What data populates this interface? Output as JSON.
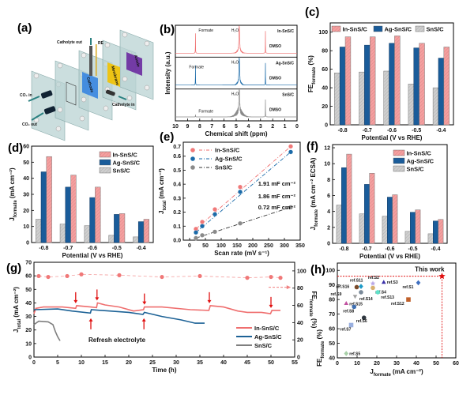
{
  "colors": {
    "in": "#f4a0a0",
    "in_line": "#ef6f6f",
    "ag": "#1a5c9a",
    "sns": "#c4c4c4",
    "sns_line": "#7f7f7f",
    "red": "#e01010"
  },
  "series_names": [
    "In-SnS/C",
    "Ag-SnS/C",
    "SnS/C"
  ],
  "chart_data": [
    {
      "panel": "(a)",
      "type": "diagram",
      "labels": {
        "catholyte_out": "Catholyte out",
        "re": "RE",
        "cathode": "Cathode",
        "membrane": "Membrane",
        "anode": "Anode",
        "co2_in": "CO₂ in",
        "co2_out": "CO₂ out",
        "catholyte_in": "Catholyte in"
      }
    },
    {
      "panel": "(b)",
      "type": "line",
      "xlabel": "Chemical shift (ppm)",
      "ylabel": "Intensity (a.u.)",
      "xlim": [
        10,
        0
      ],
      "xticks": [
        "10",
        "9",
        "8",
        "7",
        "6",
        "5",
        "4",
        "3",
        "2",
        "1",
        "0"
      ],
      "spectra": [
        {
          "name": "In-SnS/C",
          "color": "#ef6f6f",
          "peaks": [
            {
              "label": "Formate",
              "ppm": 8.35
            },
            {
              "label": "H₂O",
              "ppm": 4.75
            },
            {
              "label": "DMSO",
              "ppm": 2.6
            }
          ]
        },
        {
          "name": "Ag-SnS/C",
          "color": "#1a6aa8",
          "peaks": [
            {
              "label": "Formate",
              "ppm": 8.35
            },
            {
              "label": "H₂O",
              "ppm": 4.75
            },
            {
              "label": "DMSO",
              "ppm": 2.6
            }
          ]
        },
        {
          "name": "SnS/C",
          "color": "#8a8a8a",
          "peaks": [
            {
              "label": "Formate",
              "ppm": 8.35
            },
            {
              "label": "H₂O",
              "ppm": 4.75
            },
            {
              "label": "DMSO",
              "ppm": 2.6
            }
          ]
        }
      ]
    },
    {
      "panel": "(c)",
      "type": "bar",
      "categories": [
        "-0.8",
        "-0.7",
        "-0.6",
        "-0.5",
        "-0.4"
      ],
      "series": [
        {
          "name": "SnS/C",
          "values": [
            56,
            57,
            58,
            44,
            40
          ]
        },
        {
          "name": "Ag-SnS/C",
          "values": [
            84,
            86,
            88,
            83,
            72
          ]
        },
        {
          "name": "In-SnS/C",
          "values": [
            95,
            95,
            96,
            88,
            84
          ]
        }
      ],
      "xlabel": "Potential (V vs RHE)",
      "ylabel": {
        "main": "FE",
        "sub": "formate",
        "rest": " (%)"
      },
      "ylim": [
        0,
        110
      ],
      "yticks": [
        "0",
        "20",
        "40",
        "60",
        "80",
        "100"
      ],
      "legend": "top"
    },
    {
      "panel": "(d)",
      "type": "bar",
      "categories": [
        "-0.8",
        "-0.7",
        "-0.6",
        "-0.5",
        "-0.4"
      ],
      "series": [
        {
          "name": "SnS/C",
          "values": [
            14.5,
            11.5,
            10.5,
            4.5,
            3.5
          ]
        },
        {
          "name": "Ag-SnS/C",
          "values": [
            44,
            34.5,
            28,
            17.5,
            13
          ]
        },
        {
          "name": "In-SnS/C",
          "values": [
            53.5,
            42,
            34.5,
            18,
            14.5
          ]
        }
      ],
      "xlabel": "Potential (V vs RHE)",
      "ylabel": {
        "main": "J",
        "sub": "formate",
        "rest": " (mA cm⁻²)"
      },
      "ylim": [
        0,
        60
      ],
      "yticks": [
        "0",
        "10",
        "20",
        "30",
        "40",
        "50",
        "60"
      ],
      "legend": "top-right"
    },
    {
      "panel": "(e)",
      "type": "scatter",
      "x": [
        20,
        40,
        80,
        160,
        320
      ],
      "series": [
        {
          "name": "In-SnS/C",
          "values": [
            0.08,
            0.13,
            0.22,
            0.38,
            0.67
          ],
          "slope_label": "1.91 mF cm⁻²"
        },
        {
          "name": "Ag-SnS/C",
          "values": [
            0.055,
            0.1,
            0.185,
            0.345,
            0.63
          ],
          "slope_label": "1.86 mF cm⁻²"
        },
        {
          "name": "SnS/C",
          "values": [
            0.015,
            0.035,
            0.06,
            0.12,
            0.235
          ],
          "slope_label": "0.72 mF cm⁻²"
        }
      ],
      "xlabel": "Scan rate (mV s⁻¹)",
      "ylabel": {
        "main": "J",
        "sub": "total",
        "rest": " (mA cm⁻²)"
      },
      "xlim": [
        -20,
        350
      ],
      "ylim": [
        0,
        0.7
      ],
      "xticks": [
        "0",
        "50",
        "100",
        "150",
        "200",
        "250",
        "300",
        "350"
      ],
      "yticks": [
        "0.0",
        "0.1",
        "0.2",
        "0.3",
        "0.4",
        "0.5",
        "0.6",
        "0.7"
      ],
      "legend": "top-left"
    },
    {
      "panel": "(f)",
      "type": "bar",
      "categories": [
        "-0.8",
        "-0.7",
        "-0.6",
        "-0.5",
        "-0.4"
      ],
      "series": [
        {
          "name": "SnS/C",
          "values": [
            4.8,
            3.7,
            3.4,
            1.5,
            1.2
          ]
        },
        {
          "name": "Ag-SnS/C",
          "values": [
            9.5,
            7.4,
            5.8,
            3.9,
            2.8
          ]
        },
        {
          "name": "In-SnS/C",
          "values": [
            11.2,
            8.8,
            6.1,
            4.2,
            3.0
          ]
        }
      ],
      "xlabel": "Potential (V vs RHE)",
      "ylabel": {
        "main": "J",
        "sub": "formate",
        "rest": " (mA cm⁻² ECSA)"
      },
      "ylim": [
        0,
        12.4
      ],
      "yticks": [
        "0",
        "2",
        "4",
        "6",
        "8",
        "10",
        "12"
      ],
      "legend": "top-right"
    },
    {
      "panel": "(g)",
      "type": "line",
      "xlabel": "Time (h)",
      "ylabel": {
        "main": "J",
        "sub": "total",
        "rest": " (mA cm⁻²)"
      },
      "y2label": {
        "main": "FE",
        "sub": "formate",
        "rest": " (%)"
      },
      "xlim": [
        0,
        55
      ],
      "ylim": [
        0,
        70
      ],
      "y2lim": [
        0,
        110
      ],
      "xticks": [
        "0",
        "5",
        "10",
        "15",
        "20",
        "25",
        "30",
        "35",
        "40",
        "45",
        "50",
        "55"
      ],
      "yticks": [
        "0",
        "10",
        "20",
        "30",
        "40",
        "50",
        "60",
        "70"
      ],
      "y2ticks": [
        "0",
        "20",
        "40",
        "60",
        "80",
        "100"
      ],
      "annotation": "Refresh electrolyte",
      "refresh_down_times": [
        8.8,
        13.3,
        23.3,
        37,
        50
      ],
      "refresh_up_times": [
        12,
        23.2
      ],
      "series": [
        {
          "name": "In-SnS/C",
          "points": [
            [
              0,
              32
            ],
            [
              0.4,
              36
            ],
            [
              2,
              37
            ],
            [
              6,
              37
            ],
            [
              8.8,
              36
            ],
            [
              9,
              38
            ],
            [
              12,
              37
            ],
            [
              13.2,
              36.5
            ],
            [
              13.4,
              40
            ],
            [
              15,
              38.5
            ],
            [
              18,
              37
            ],
            [
              21,
              34
            ],
            [
              23.1,
              35
            ],
            [
              23.3,
              37
            ],
            [
              27,
              37
            ],
            [
              33,
              35
            ],
            [
              36.9,
              34.5
            ],
            [
              37.2,
              38
            ],
            [
              40,
              37
            ],
            [
              43,
              34
            ],
            [
              45,
              33
            ],
            [
              48,
              33
            ],
            [
              49.9,
              32
            ],
            [
              50.2,
              34.5
            ],
            [
              52,
              34.5
            ]
          ]
        },
        {
          "name": "Ag-SnS/C",
          "points": [
            [
              0,
              35
            ],
            [
              5,
              35.5
            ],
            [
              8,
              34
            ],
            [
              11.9,
              32.5
            ],
            [
              12.1,
              35
            ],
            [
              16,
              34
            ],
            [
              20,
              33
            ],
            [
              23,
              31.5
            ],
            [
              23.3,
              33
            ],
            [
              27,
              30
            ],
            [
              31,
              27.5
            ],
            [
              34,
              25
            ],
            [
              36,
              25
            ]
          ]
        },
        {
          "name": "SnS/C",
          "points": [
            [
              0,
              24
            ],
            [
              1,
              26.5
            ],
            [
              3,
              26
            ],
            [
              4,
              24
            ],
            [
              4.5,
              19
            ],
            [
              5,
              15
            ],
            [
              5.5,
              12
            ]
          ]
        }
      ],
      "fe_points": [
        [
          1,
          94
        ],
        [
          3,
          93
        ],
        [
          7,
          94
        ],
        [
          10,
          96
        ],
        [
          18,
          95
        ],
        [
          27,
          93
        ],
        [
          35,
          94
        ],
        [
          45,
          92
        ],
        [
          50,
          93
        ],
        [
          52,
          92
        ]
      ],
      "legend": "bottom-right"
    },
    {
      "panel": "(h)",
      "type": "scatter",
      "xlabel": {
        "main": "J",
        "sub": "formate",
        "rest": " (mA cm⁻²)"
      },
      "ylabel": {
        "main": "FE",
        "sub": "formate",
        "rest": " (%)"
      },
      "xlim": [
        0,
        60
      ],
      "ylim": [
        40,
        105
      ],
      "xticks": [
        "0",
        "10",
        "20",
        "30",
        "40",
        "50",
        "60"
      ],
      "yticks": [
        "40",
        "50",
        "60",
        "70",
        "80",
        "90",
        "100"
      ],
      "this_work": {
        "label": "This work",
        "x": 53,
        "y": 96,
        "color": "#e01010"
      },
      "points": [
        {
          "label": "ref.S11",
          "x": 12,
          "y": 89,
          "color": "#1d9ac8",
          "marker": "diamond"
        },
        {
          "label": "ref.S16",
          "x": 9.8,
          "y": 88.5,
          "color": "#7a4a2a",
          "marker": "circle"
        },
        {
          "label": "ref.S9",
          "x": 9,
          "y": 82,
          "color": "#a0a0a0",
          "marker": "triangle-down"
        },
        {
          "label": "ref.S2",
          "x": 18,
          "y": 91,
          "color": "#b9a6e6",
          "marker": "star"
        },
        {
          "label": "ref.S4",
          "x": 18,
          "y": 88,
          "color": "#d8b070",
          "marker": "circle"
        },
        {
          "label": "ref.S3",
          "x": 23.5,
          "y": 92,
          "color": "#3a30a8",
          "marker": "triangle"
        },
        {
          "label": "ref.S14",
          "x": 12,
          "y": 85,
          "color": "#7a8a9a",
          "marker": "circle"
        },
        {
          "label": "ref.S13",
          "x": 20.5,
          "y": 85,
          "color": "#60e0c8",
          "marker": "circle"
        },
        {
          "label": "ref.S1",
          "x": 41,
          "y": 91.5,
          "color": "#3f6fc0",
          "marker": "diamond"
        },
        {
          "label": "ref.S15",
          "x": 4.5,
          "y": 77.5,
          "color": "#c050a0",
          "marker": "triangle"
        },
        {
          "label": "ref.S8",
          "x": 8.5,
          "y": 75,
          "color": "#3f6fb0",
          "marker": "circle"
        },
        {
          "label": "ref.S12",
          "x": 36,
          "y": 80,
          "color": "#c0602a",
          "marker": "square"
        },
        {
          "label": "ref.S6",
          "x": 13.5,
          "y": 67.5,
          "color": "#303840",
          "marker": "circle"
        },
        {
          "label": "ref.S7",
          "x": 7,
          "y": 62.5,
          "color": "#9ab0e0",
          "marker": "square"
        },
        {
          "label": "ref.S5",
          "x": 4.5,
          "y": 43,
          "color": "#a8d0a8",
          "marker": "diamond"
        }
      ]
    }
  ]
}
